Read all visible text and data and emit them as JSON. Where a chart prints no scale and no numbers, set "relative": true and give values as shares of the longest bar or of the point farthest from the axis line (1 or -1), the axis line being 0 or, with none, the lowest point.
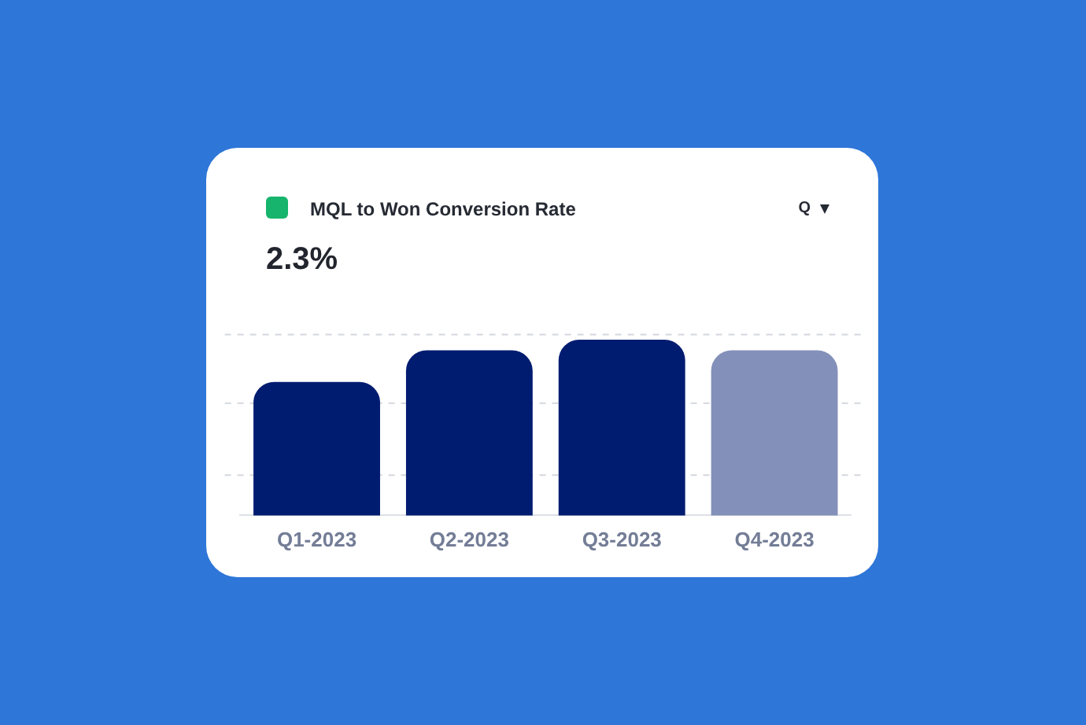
{
  "chart_data": {
    "type": "bar",
    "title": "MQL to Won Conversion Rate",
    "subtitle": "2.3%",
    "annotations": [
      "Q"
    ],
    "categories": [
      "Q1-2023",
      "Q2-2023",
      "Q3-2023",
      "Q4-2023"
    ],
    "relative": true,
    "values": [
      0.76,
      0.94,
      1,
      0.94
    ],
    "colors": [
      "#001c70",
      "#001c70",
      "#001c70",
      "#8390b9"
    ],
    "ref_lines": [
      {
        "axis": "y",
        "value": 0.23,
        "color": "#d3d7de",
        "line_style": "dashed"
      },
      {
        "axis": "y",
        "value": 0.64,
        "color": "#d3d7de",
        "line_style": "dashed"
      },
      {
        "axis": "y",
        "value": 1.03,
        "color": "#d3d7de",
        "line_style": "dashed"
      }
    ]
  }
}
